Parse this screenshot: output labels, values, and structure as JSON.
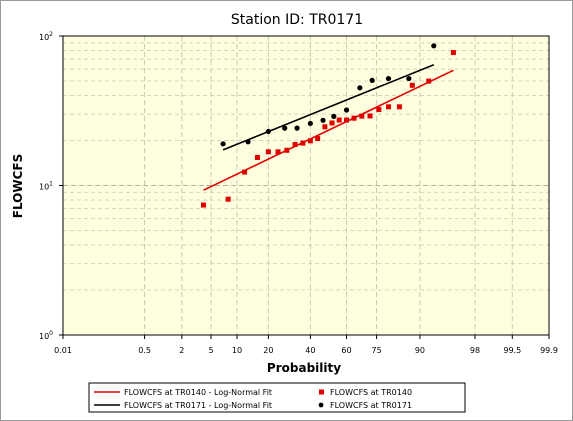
{
  "chart_data": {
    "type": "scatter",
    "title": "Station ID: TR0171",
    "xlabel": "Probability",
    "ylabel": "FLOWCFS",
    "x_scale": "normal-probability",
    "y_scale": "log",
    "ylim": [
      1,
      100
    ],
    "x_ticks": [
      0.01,
      0.5,
      2,
      5,
      10,
      20,
      40,
      60,
      75,
      90,
      98,
      99.5,
      99.9
    ],
    "x_tick_labels": [
      "0.01",
      "0.5",
      "2",
      "5",
      "10",
      "20",
      "40",
      "60",
      "75",
      "90",
      "98",
      "99.5",
      "99.9"
    ],
    "y_ticks": [
      1,
      10,
      100
    ],
    "grid": true,
    "legend_position": "bottom",
    "colors": {
      "tr0140": "#e00000",
      "tr0171": "#000000",
      "plot_background": "#ffffe0"
    },
    "legend": [
      {
        "label": "FLOWCFS at TR0140 - Log-Normal Fit",
        "kind": "line",
        "series": "tr0140_fit"
      },
      {
        "label": "FLOWCFS at TR0140",
        "kind": "square",
        "series": "tr0140_obs"
      },
      {
        "label": "FLOWCFS at TR0171 - Log-Normal Fit",
        "kind": "line",
        "series": "tr0171_fit"
      },
      {
        "label": "FLOWCFS at TR0171",
        "kind": "circle",
        "series": "tr0171_obs"
      }
    ],
    "series": [
      {
        "name": "FLOWCFS at TR0140",
        "id": "tr0140_obs",
        "marker": "square",
        "points": [
          [
            4,
            7.4
          ],
          [
            8,
            8.1
          ],
          [
            12,
            12.3
          ],
          [
            16,
            15.4
          ],
          [
            20,
            16.8
          ],
          [
            24,
            16.8
          ],
          [
            28,
            17.2
          ],
          [
            32,
            18.8
          ],
          [
            36,
            19.2
          ],
          [
            40,
            19.9
          ],
          [
            44,
            20.6
          ],
          [
            48,
            24.7
          ],
          [
            52,
            26.2
          ],
          [
            56,
            27.4
          ],
          [
            60,
            27.4
          ],
          [
            64,
            28.2
          ],
          [
            68,
            29.1
          ],
          [
            72,
            29.2
          ],
          [
            76,
            32.2
          ],
          [
            80,
            33.6
          ],
          [
            84,
            33.6
          ],
          [
            88,
            46.8
          ],
          [
            92,
            49.9
          ],
          [
            96,
            77.5
          ]
        ]
      },
      {
        "name": "FLOWCFS at TR0140 - Log-Normal Fit",
        "id": "tr0140_fit",
        "marker": "line",
        "points": [
          [
            4,
            9.3
          ],
          [
            96,
            59
          ]
        ]
      },
      {
        "name": "FLOWCFS at TR0171",
        "id": "tr0171_obs",
        "marker": "circle",
        "points": [
          [
            7,
            19
          ],
          [
            13,
            19.6
          ],
          [
            20,
            23
          ],
          [
            27,
            24.2
          ],
          [
            33,
            24.2
          ],
          [
            40,
            26
          ],
          [
            47,
            27.3
          ],
          [
            53,
            29
          ],
          [
            60,
            32
          ],
          [
            67,
            45
          ],
          [
            73,
            50.5
          ],
          [
            80,
            51.9
          ],
          [
            87,
            51.9
          ],
          [
            93,
            86
          ]
        ]
      },
      {
        "name": "FLOWCFS at TR0171 - Log-Normal Fit",
        "id": "tr0171_fit",
        "marker": "line",
        "points": [
          [
            7,
            17.3
          ],
          [
            93,
            64.3
          ]
        ]
      }
    ]
  }
}
